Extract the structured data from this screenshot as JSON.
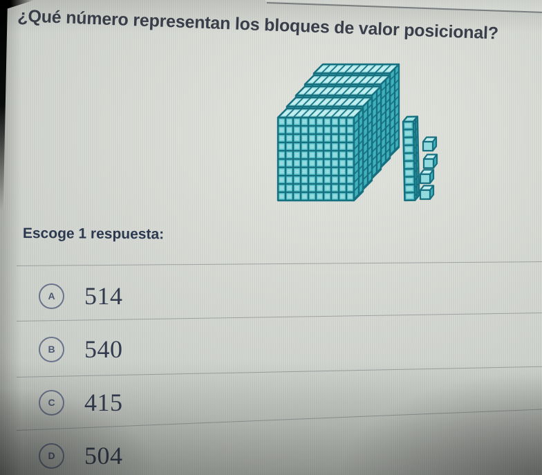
{
  "question": {
    "title": "¿Qué número representan los bloques de valor posicional?"
  },
  "answer_section": {
    "label": "Escoge 1 respuesta:"
  },
  "choices": [
    {
      "letter": "A",
      "value": "514"
    },
    {
      "letter": "B",
      "value": "540"
    },
    {
      "letter": "C",
      "value": "415"
    },
    {
      "letter": "D",
      "value": "504"
    }
  ],
  "figure": {
    "type": "place-value-blocks",
    "hundreds_flats": 5,
    "tens_rods": 1,
    "ones_cubes": 4,
    "colors": {
      "fill": "#57c3cb",
      "highlight": "#93dade",
      "top": "#a2e3e5",
      "top_highlight": "#c2eeef",
      "side": "#3fb1bc",
      "outline": "#17707f"
    }
  }
}
